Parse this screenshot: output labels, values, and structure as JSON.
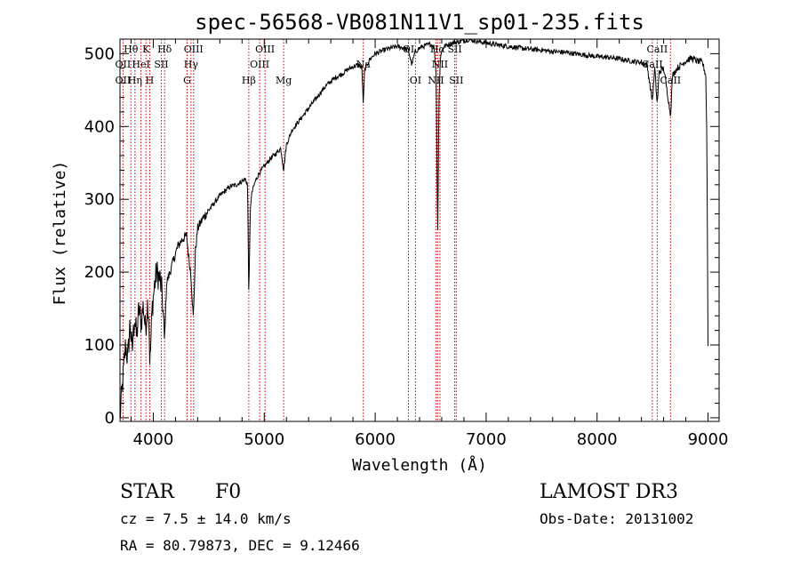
{
  "chart_data": {
    "type": "line",
    "title": "spec-56568-VB081N11V1_sp01-235.fits",
    "xlabel": "Wavelength (Å)",
    "ylabel": "Flux (relative)",
    "xlim": [
      3700,
      9100
    ],
    "ylim": [
      -5,
      520
    ],
    "xticks": [
      4000,
      5000,
      6000,
      7000,
      8000,
      9000
    ],
    "yticks": [
      0,
      100,
      200,
      300,
      400,
      500
    ],
    "grid": false,
    "series": [
      {
        "name": "spectrum",
        "x": [
          3700,
          3730,
          3750,
          3770,
          3790,
          3810,
          3830,
          3850,
          3870,
          3890,
          3910,
          3930,
          3950,
          3960,
          3970,
          3990,
          4010,
          4030,
          4060,
          4080,
          4101,
          4120,
          4150,
          4180,
          4220,
          4260,
          4300,
          4320,
          4340,
          4361,
          4380,
          4400,
          4450,
          4500,
          4550,
          4600,
          4650,
          4700,
          4750,
          4800,
          4830,
          4850,
          4861,
          4875,
          4890,
          4920,
          4950,
          5000,
          5050,
          5100,
          5150,
          5175,
          5200,
          5250,
          5300,
          5350,
          5400,
          5450,
          5500,
          5550,
          5600,
          5650,
          5700,
          5750,
          5800,
          5850,
          5880,
          5893,
          5905,
          5950,
          6000,
          6050,
          6100,
          6150,
          6200,
          6250,
          6300,
          6330,
          6360,
          6400,
          6450,
          6500,
          6530,
          6550,
          6563,
          6575,
          6590,
          6620,
          6650,
          6700,
          6750,
          6800,
          6850,
          6900,
          6950,
          7000,
          7100,
          7200,
          7300,
          7400,
          7500,
          7600,
          7700,
          7800,
          7900,
          8000,
          8100,
          8200,
          8300,
          8400,
          8450,
          8498,
          8520,
          8542,
          8560,
          8600,
          8640,
          8662,
          8680,
          8720,
          8760,
          8800,
          8850,
          8900,
          8950,
          8980,
          8990,
          9000
        ],
        "y": [
          0,
          60,
          100,
          80,
          130,
          90,
          140,
          110,
          150,
          130,
          155,
          120,
          160,
          140,
          70,
          150,
          180,
          200,
          190,
          170,
          105,
          185,
          200,
          215,
          235,
          245,
          250,
          220,
          195,
          135,
          230,
          260,
          275,
          285,
          295,
          305,
          312,
          318,
          320,
          325,
          328,
          320,
          165,
          290,
          310,
          325,
          335,
          345,
          355,
          362,
          370,
          340,
          375,
          395,
          405,
          415,
          425,
          435,
          445,
          455,
          462,
          468,
          472,
          478,
          482,
          485,
          480,
          430,
          478,
          492,
          500,
          503,
          506,
          508,
          510,
          508,
          505,
          485,
          502,
          508,
          511,
          513,
          510,
          470,
          245,
          440,
          500,
          510,
          512,
          515,
          516,
          518,
          520,
          518,
          516,
          515,
          512,
          510,
          508,
          506,
          505,
          503,
          502,
          500,
          498,
          496,
          495,
          493,
          490,
          488,
          485,
          435,
          480,
          430,
          475,
          480,
          440,
          415,
          470,
          480,
          485,
          490,
          494,
          490,
          488,
          470,
          380,
          100
        ]
      }
    ],
    "spectral_lines": [
      {
        "label": "Hθ",
        "wavelength": 3798,
        "row": 0
      },
      {
        "label": "K",
        "wavelength": 3934,
        "row": 0
      },
      {
        "label": "Hδ",
        "wavelength": 4102,
        "row": 0
      },
      {
        "label": "OIII",
        "wavelength": 4363,
        "row": 0
      },
      {
        "label": "OIII",
        "wavelength": 5007,
        "row": 0
      },
      {
        "label": "OI",
        "wavelength": 6300,
        "row": 0
      },
      {
        "label": "Hα",
        "wavelength": 6563,
        "row": 0
      },
      {
        "label": "SII",
        "wavelength": 6717,
        "row": 0
      },
      {
        "label": "CaII",
        "wavelength": 8542,
        "row": 0
      },
      {
        "label": "OII",
        "wavelength": 3727,
        "row": 1
      },
      {
        "label": "HeI",
        "wavelength": 3889,
        "row": 1
      },
      {
        "label": "SII",
        "wavelength": 4072,
        "row": 1
      },
      {
        "label": "Hγ",
        "wavelength": 4340,
        "row": 1
      },
      {
        "label": "OIII",
        "wavelength": 4959,
        "row": 1
      },
      {
        "label": "Na",
        "wavelength": 5893,
        "row": 1
      },
      {
        "label": "NII",
        "wavelength": 6584,
        "row": 1
      },
      {
        "label": "CaII",
        "wavelength": 8498,
        "row": 1
      },
      {
        "label": "OII",
        "wavelength": 3727,
        "row": 2
      },
      {
        "label": "Hη",
        "wavelength": 3835,
        "row": 2
      },
      {
        "label": "H",
        "wavelength": 3968,
        "row": 2
      },
      {
        "label": "G",
        "wavelength": 4305,
        "row": 2
      },
      {
        "label": "Hβ",
        "wavelength": 4861,
        "row": 2
      },
      {
        "label": "Mg",
        "wavelength": 5175,
        "row": 2
      },
      {
        "label": "OI",
        "wavelength": 6363,
        "row": 2
      },
      {
        "label": "NII",
        "wavelength": 6548,
        "row": 2
      },
      {
        "label": "SII",
        "wavelength": 6731,
        "row": 2
      },
      {
        "label": "CaII",
        "wavelength": 8662,
        "row": 2
      }
    ],
    "line_markers": [
      3727,
      3798,
      3835,
      3889,
      3934,
      3968,
      4072,
      4102,
      4305,
      4340,
      4363,
      4861,
      4959,
      5007,
      5175,
      5893,
      6300,
      6363,
      6548,
      6563,
      6584,
      6717,
      6731,
      8498,
      8542,
      8662
    ]
  },
  "info": {
    "class": "STAR",
    "subclass": "F0",
    "survey": "LAMOST DR3",
    "cz": "cz = 7.5 ± 14.0 km/s",
    "obs_date": "Obs-Date: 20131002",
    "radec": "RA =  80.79873, DEC =   9.12466"
  }
}
